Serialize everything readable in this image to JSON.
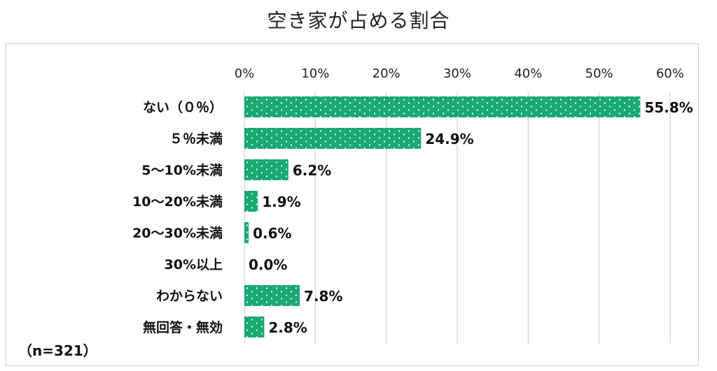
{
  "chart_data": {
    "type": "bar",
    "orientation": "horizontal",
    "title": "空き家が占める割合",
    "categories": [
      "ない（０％）",
      "５％未満",
      "5～10%未満",
      "10～20%未満",
      "20～30%未満",
      "30%以上",
      "わからない",
      "無回答・無効"
    ],
    "values": [
      55.8,
      24.9,
      6.2,
      1.9,
      0.6,
      0.0,
      7.8,
      2.8
    ],
    "value_labels": [
      "55.8%",
      "24.9%",
      "6.2%",
      "1.9%",
      "0.6%",
      "0.0%",
      "7.8%",
      "2.8%"
    ],
    "xlim": [
      0,
      60
    ],
    "xticks": [
      "0%",
      "10%",
      "20%",
      "30%",
      "40%",
      "50%",
      "60%"
    ],
    "axis_position": "top",
    "grid": true,
    "bar_color": "#1aa874",
    "bar_pattern": "white dots",
    "note": "（n=321）"
  }
}
